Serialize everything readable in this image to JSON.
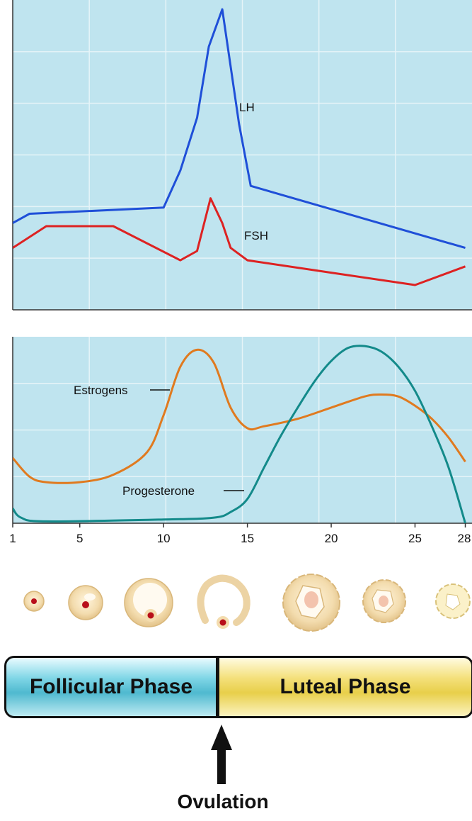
{
  "chart_data": [
    {
      "type": "line",
      "panel": "pituitary-hormones",
      "x_range": [
        1,
        28
      ],
      "grid": true,
      "series": [
        {
          "name": "LH",
          "color": "#1f4fd8",
          "x": [
            1,
            2,
            10,
            11,
            12,
            12.7,
            13.5,
            14.5,
            15.2,
            28
          ],
          "y": [
            0.28,
            0.31,
            0.33,
            0.45,
            0.62,
            0.85,
            0.97,
            0.6,
            0.4,
            0.2
          ]
        },
        {
          "name": "FSH",
          "color": "#dd2222",
          "x": [
            1,
            3,
            7,
            11,
            12,
            12.8,
            13.5,
            14,
            15,
            20,
            25,
            28
          ],
          "y": [
            0.2,
            0.27,
            0.27,
            0.16,
            0.19,
            0.36,
            0.28,
            0.2,
            0.16,
            0.12,
            0.08,
            0.14
          ]
        }
      ]
    },
    {
      "type": "line",
      "panel": "ovarian-hormones",
      "x_range": [
        1,
        28
      ],
      "x_ticks": [
        1,
        5,
        10,
        15,
        20,
        25,
        28
      ],
      "grid": true,
      "series": [
        {
          "name": "Estrogens",
          "color": "#e07a1f",
          "x": [
            1,
            2,
            3,
            5,
            7,
            9,
            10,
            11,
            12,
            13,
            14,
            15,
            16,
            18,
            20,
            22,
            23,
            24,
            25,
            26,
            27,
            28
          ],
          "y": [
            0.35,
            0.25,
            0.22,
            0.22,
            0.26,
            0.38,
            0.58,
            0.84,
            0.93,
            0.86,
            0.62,
            0.51,
            0.52,
            0.56,
            0.62,
            0.68,
            0.69,
            0.68,
            0.63,
            0.56,
            0.46,
            0.33
          ]
        },
        {
          "name": "Progesterone",
          "color": "#138a8a",
          "x": [
            1,
            1.5,
            3,
            10,
            13,
            14,
            15,
            16,
            17,
            18,
            19,
            20,
            21,
            22,
            23,
            24,
            25,
            26,
            27,
            28
          ],
          "y": [
            0.08,
            0.03,
            0.01,
            0.02,
            0.03,
            0.06,
            0.13,
            0.3,
            0.47,
            0.62,
            0.76,
            0.87,
            0.94,
            0.95,
            0.92,
            0.84,
            0.71,
            0.52,
            0.3,
            0.0
          ]
        }
      ]
    }
  ],
  "tick_labels": [
    "1",
    "5",
    "10",
    "15",
    "20",
    "25",
    "28"
  ],
  "phases": {
    "follicular": "Follicular Phase",
    "luteal": "Luteal Phase"
  },
  "ovulation": "Ovulation",
  "colors": {
    "panel_bg": "#bfe4ef",
    "grid": "#e6f4f8",
    "axis": "#333333"
  }
}
